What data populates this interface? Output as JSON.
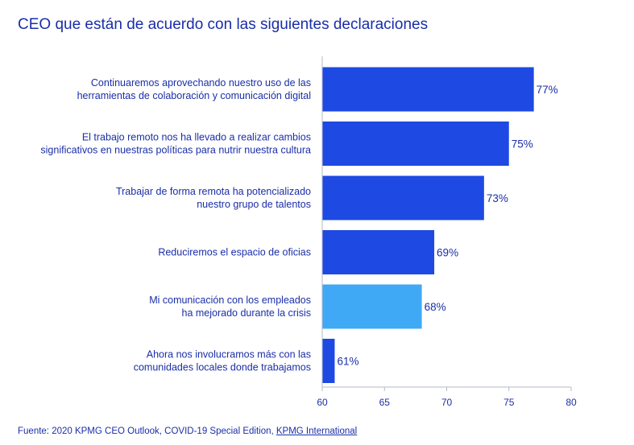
{
  "title": "CEO que están de acuerdo con las siguientes declaraciones",
  "source": {
    "prefix": "Fuente: 2020 KPMG CEO Outlook, COVID-19 Special Edition, ",
    "link": "KPMG International"
  },
  "colors": {
    "primary": "#1e49e2",
    "highlight": "#3fa9f5",
    "text": "#1a2ea8"
  },
  "chart_data": {
    "type": "bar",
    "orientation": "horizontal",
    "categories": [
      [
        "Continuaremos aprovechando nuestro uso de las",
        "herramientas de colaboración y comunicación digital"
      ],
      [
        "El trabajo remoto nos ha llevado a realizar cambios",
        "significativos en nuestras políticas para nutrir nuestra cultura"
      ],
      [
        "Trabajar de forma remota ha potencializado",
        "nuestro grupo de talentos"
      ],
      [
        "Reduciremos el espacio de oficias"
      ],
      [
        "Mi comunicación con los empleados",
        "ha mejorado durante la crisis"
      ],
      [
        "Ahora nos involucramos más con las",
        "comunidades locales donde trabajamos"
      ]
    ],
    "values": [
      77,
      75,
      73,
      69,
      68,
      61
    ],
    "value_labels": [
      "77%",
      "75%",
      "73%",
      "69%",
      "68%",
      "61%"
    ],
    "highlight_index": 4,
    "xlim": [
      60,
      80
    ],
    "xticks": [
      60,
      65,
      70,
      75,
      80
    ],
    "title": "CEO que están de acuerdo con las siguientes declaraciones",
    "xlabel": "",
    "ylabel": "",
    "grid": false
  }
}
